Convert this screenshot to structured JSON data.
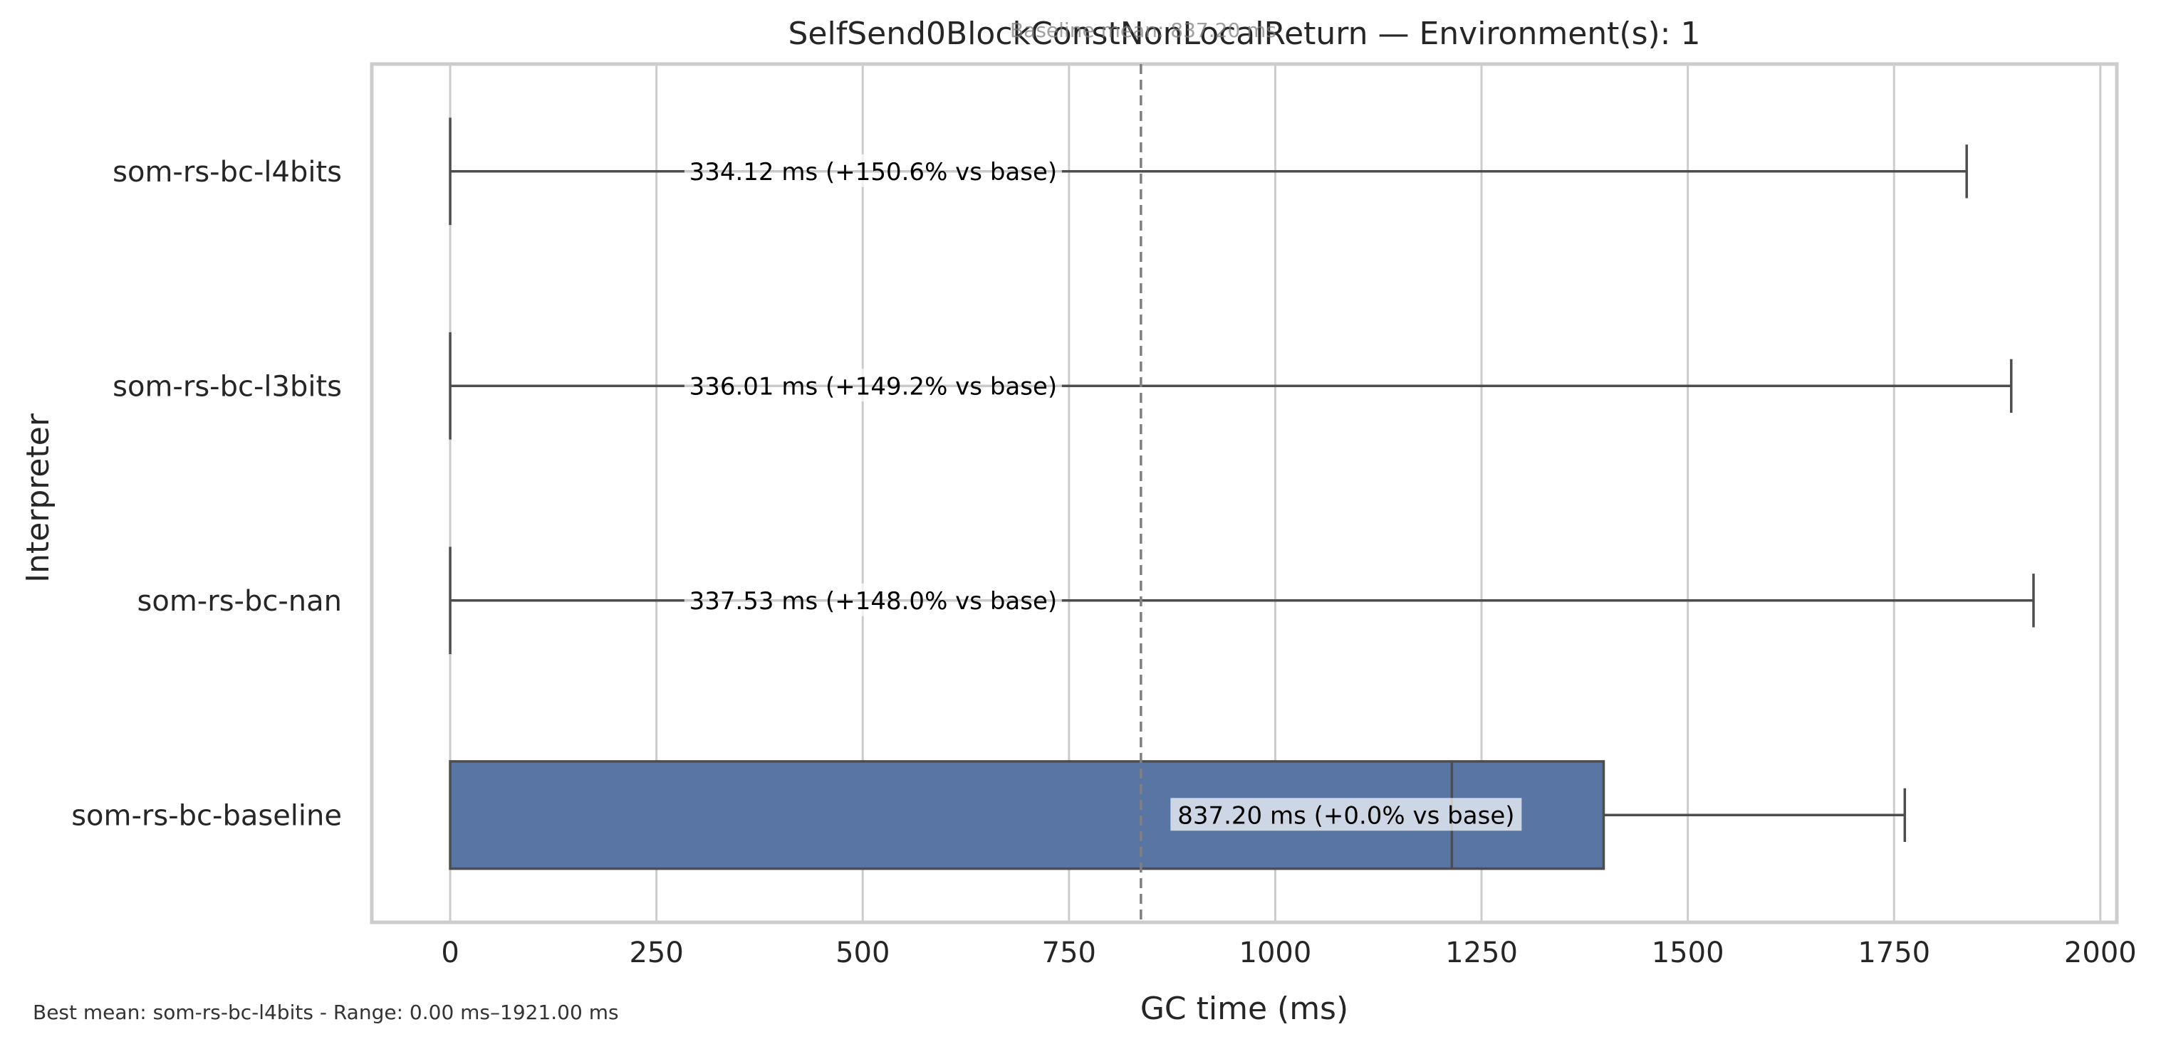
{
  "chart_data": {
    "type": "box",
    "title": "SelfSend0BlockConstNonLocalReturn — Environment(s): 1",
    "xlabel": "GC time (ms)",
    "ylabel": "Interpreter",
    "xlim": [
      -95,
      2020
    ],
    "x_ticks": [
      0,
      250,
      500,
      750,
      1000,
      1250,
      1500,
      1750,
      2000
    ],
    "x_tick_labels": [
      "0",
      "250",
      "500",
      "750",
      "1000",
      "1250",
      "1500",
      "1750",
      "2000"
    ],
    "grid": true,
    "baseline_mean": 837.2,
    "baseline_label": "Baseline mean: 837.20 ms",
    "series": [
      {
        "name": "som-rs-bc-l4bits",
        "min": 0,
        "q1": 0,
        "median": 0,
        "q3": 0,
        "whisker_high": 1838,
        "label": "334.12 ms  (+150.6% vs base)"
      },
      {
        "name": "som-rs-bc-l3bits",
        "min": 0,
        "q1": 0,
        "median": 0,
        "q3": 0,
        "whisker_high": 1892,
        "label": "336.01 ms  (+149.2% vs base)"
      },
      {
        "name": "som-rs-bc-nan",
        "min": 0,
        "q1": 0,
        "median": 0,
        "q3": 0,
        "whisker_high": 1919,
        "label": "337.53 ms  (+148.0% vs base)"
      },
      {
        "name": "som-rs-bc-baseline",
        "min": 0,
        "q1": 0,
        "median": 1214,
        "q3": 1398,
        "whisker_high": 1763,
        "label": "837.20 ms  (+0.0% vs base)"
      }
    ],
    "colors": {
      "box": "#5975a4",
      "line": "#4d4d4d",
      "grid": "#cccccc",
      "baseline": "#808080"
    }
  },
  "footer": "Best mean: som-rs-bc-l4bits - Range: 0.00 ms–1921.00 ms"
}
